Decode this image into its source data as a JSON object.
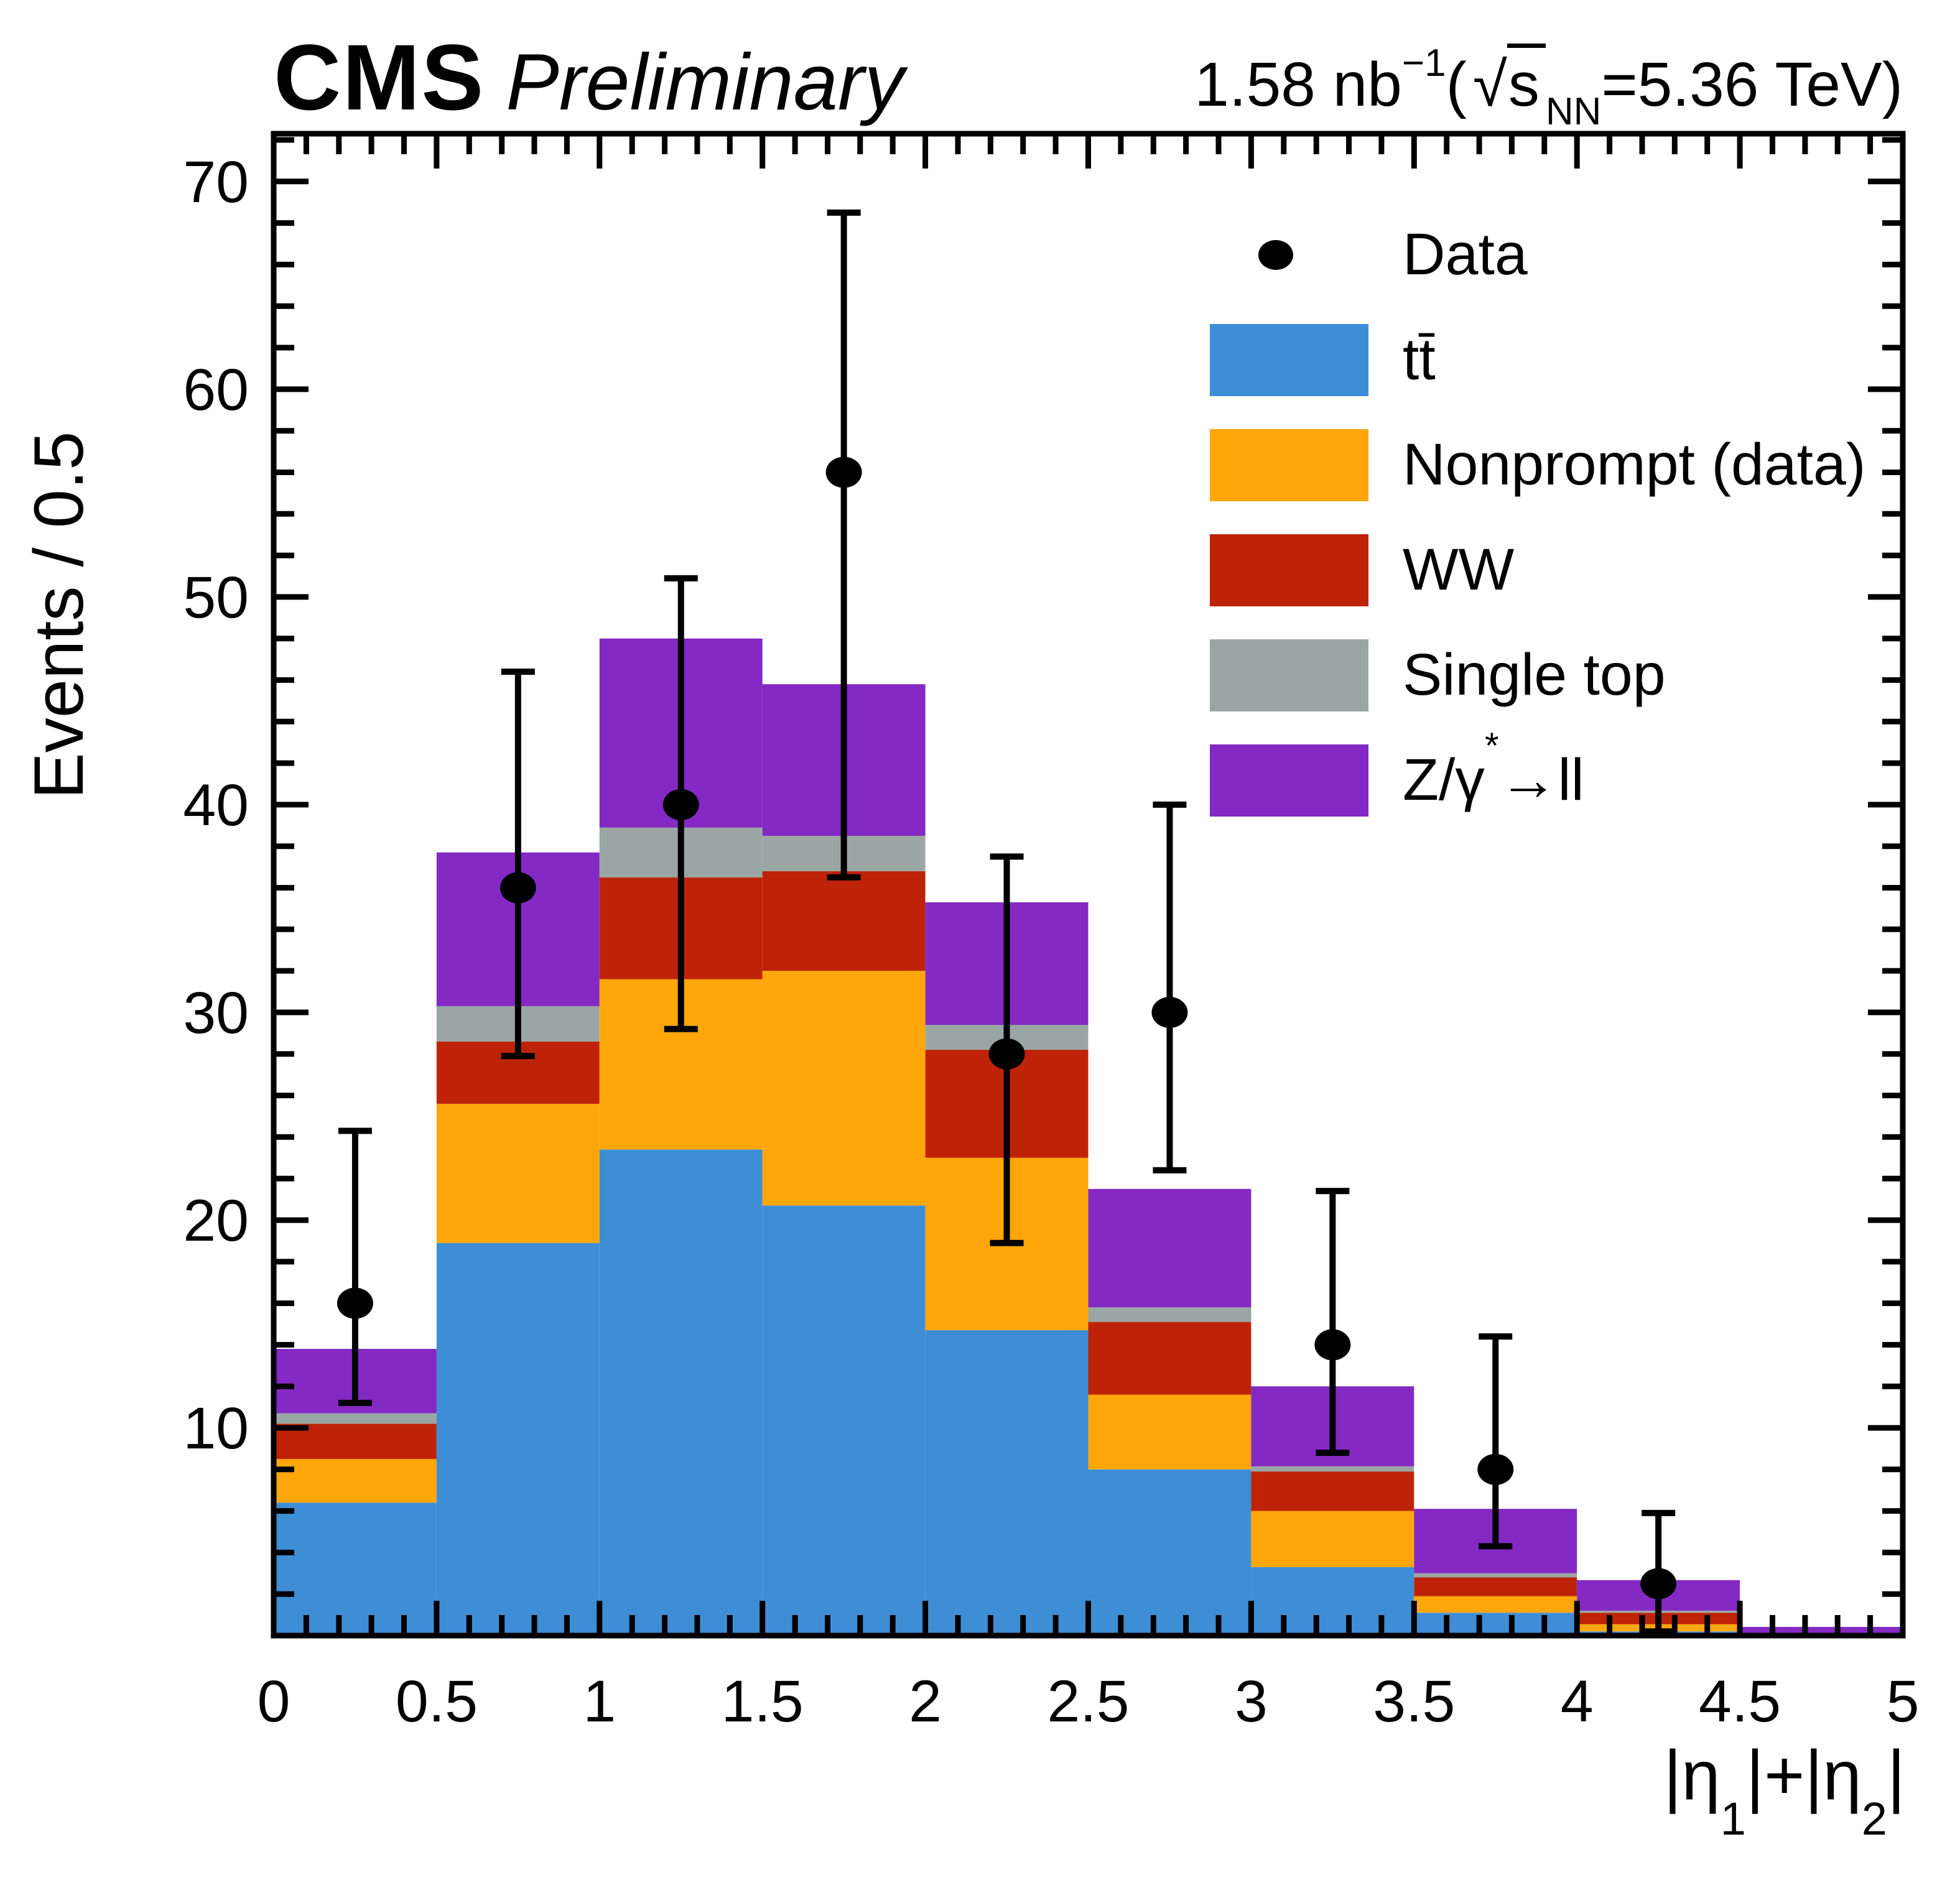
{
  "header": {
    "experiment": "CMS",
    "status": "Preliminary",
    "lumi": {
      "p0": "1.58 nb",
      "sup1": "−1",
      "p1": " (",
      "sqrt": "√",
      "arg": "s",
      "sub": "NN",
      "p2": "=5.36 TeV)"
    }
  },
  "y_axis": {
    "title": "Events / 0.5",
    "tick_labels": [
      "10",
      "20",
      "30",
      "40",
      "50",
      "60",
      "70"
    ],
    "tick_values": [
      10,
      20,
      30,
      40,
      50,
      60,
      70
    ],
    "minor_step": 2,
    "min": 0,
    "max": 72.3
  },
  "x_axis": {
    "title_parts": {
      "p1": "|η",
      "s1": "1",
      "p2": "|+|η",
      "s2": "2",
      "p3": "|"
    },
    "tick_labels": [
      "0",
      "0.5",
      "1",
      "1.5",
      "2",
      "2.5",
      "3",
      "3.5",
      "4",
      "4.5",
      "5"
    ],
    "tick_values": [
      0,
      0.5,
      1,
      1.5,
      2,
      2.5,
      3,
      3.5,
      4,
      4.5,
      5
    ],
    "minor_step": 0.1,
    "min": 0,
    "max": 5
  },
  "legend": {
    "entries": [
      {
        "name": "data",
        "icon": "marker",
        "color": "#000000",
        "parts": [
          {
            "t": "Data"
          }
        ]
      },
      {
        "name": "ttbar",
        "icon": "box",
        "color": "#3E8ED5",
        "parts": [
          {
            "t": "tt̄"
          }
        ]
      },
      {
        "name": "nonprompt",
        "icon": "box",
        "color": "#FFA60B",
        "parts": [
          {
            "t": "Nonprompt (data)"
          }
        ]
      },
      {
        "name": "ww",
        "icon": "box",
        "color": "#BE2308",
        "parts": [
          {
            "t": "WW"
          }
        ]
      },
      {
        "name": "single-top",
        "icon": "box",
        "color": "#9AA6A4",
        "parts": [
          {
            "t": "Single top"
          }
        ]
      },
      {
        "name": "z-gamma-ll",
        "icon": "box",
        "color": "#8429C4",
        "parts": [
          {
            "t": "Z/γ"
          },
          {
            "sup": "*"
          },
          {
            "t": "→ll"
          }
        ]
      }
    ]
  },
  "chart_data": {
    "type": "bar",
    "subtype": "stacked-histogram-with-data-points",
    "title": "CMS Preliminary, 1.58 nb⁻¹ (√s_NN = 5.36 TeV)",
    "xlabel": "|η_1|+|η_2|",
    "ylabel": "Events / 0.5",
    "xlim": [
      0,
      5
    ],
    "ylim": [
      0,
      72.3
    ],
    "bin_width": 0.5,
    "bin_edges": [
      0,
      0.5,
      1,
      1.5,
      2,
      2.5,
      3,
      3.5,
      4,
      4.5,
      5
    ],
    "series": [
      {
        "name": "ttbar",
        "label": "tt̄",
        "color": "#3E8ED5",
        "values": [
          6.4,
          18.9,
          23.4,
          20.7,
          14.7,
          8.0,
          3.3,
          1.1,
          0.2,
          0
        ]
      },
      {
        "name": "nonprompt",
        "label": "Nonprompt (data)",
        "color": "#FFA60B",
        "values": [
          2.1,
          6.7,
          8.2,
          11.3,
          8.3,
          3.6,
          2.7,
          0.8,
          0.35,
          0
        ]
      },
      {
        "name": "ww",
        "label": "WW",
        "color": "#BE2308",
        "values": [
          1.7,
          3.0,
          4.9,
          4.8,
          5.2,
          3.5,
          1.9,
          0.9,
          0.55,
          0
        ]
      },
      {
        "name": "single-top",
        "label": "Single top",
        "color": "#9AA6A4",
        "values": [
          0.5,
          1.7,
          2.4,
          1.7,
          1.2,
          0.7,
          0.25,
          0.2,
          0.1,
          0
        ]
      },
      {
        "name": "z-gamma-ll",
        "label": "Z/γ*→ll",
        "color": "#8429C4",
        "values": [
          3.1,
          7.4,
          9.1,
          7.3,
          5.9,
          5.7,
          3.85,
          3.1,
          1.47,
          0.42
        ]
      }
    ],
    "stack_totals": [
      13.8,
      37.7,
      48.0,
      45.8,
      35.3,
      21.5,
      12.0,
      6.1,
      2.67,
      0.42
    ],
    "data_points": [
      {
        "x": 0.25,
        "y": 16,
        "lo": 11.2,
        "hi": 24.3
      },
      {
        "x": 0.75,
        "y": 36,
        "lo": 27.9,
        "hi": 46.4
      },
      {
        "x": 1.25,
        "y": 40,
        "lo": 29.2,
        "hi": 50.9
      },
      {
        "x": 1.75,
        "y": 56,
        "lo": 36.5,
        "hi": 68.5
      },
      {
        "x": 2.25,
        "y": 28,
        "lo": 18.9,
        "hi": 37.5
      },
      {
        "x": 2.75,
        "y": 30,
        "lo": 22.4,
        "hi": 40.0
      },
      {
        "x": 3.25,
        "y": 14,
        "lo": 8.8,
        "hi": 21.4
      },
      {
        "x": 3.75,
        "y": 8,
        "lo": 4.3,
        "hi": 14.4
      },
      {
        "x": 4.25,
        "y": 2.5,
        "lo": 0.2,
        "hi": 5.9
      }
    ],
    "legend_position": "upper right",
    "grid": false,
    "frame_color": "#000000"
  }
}
